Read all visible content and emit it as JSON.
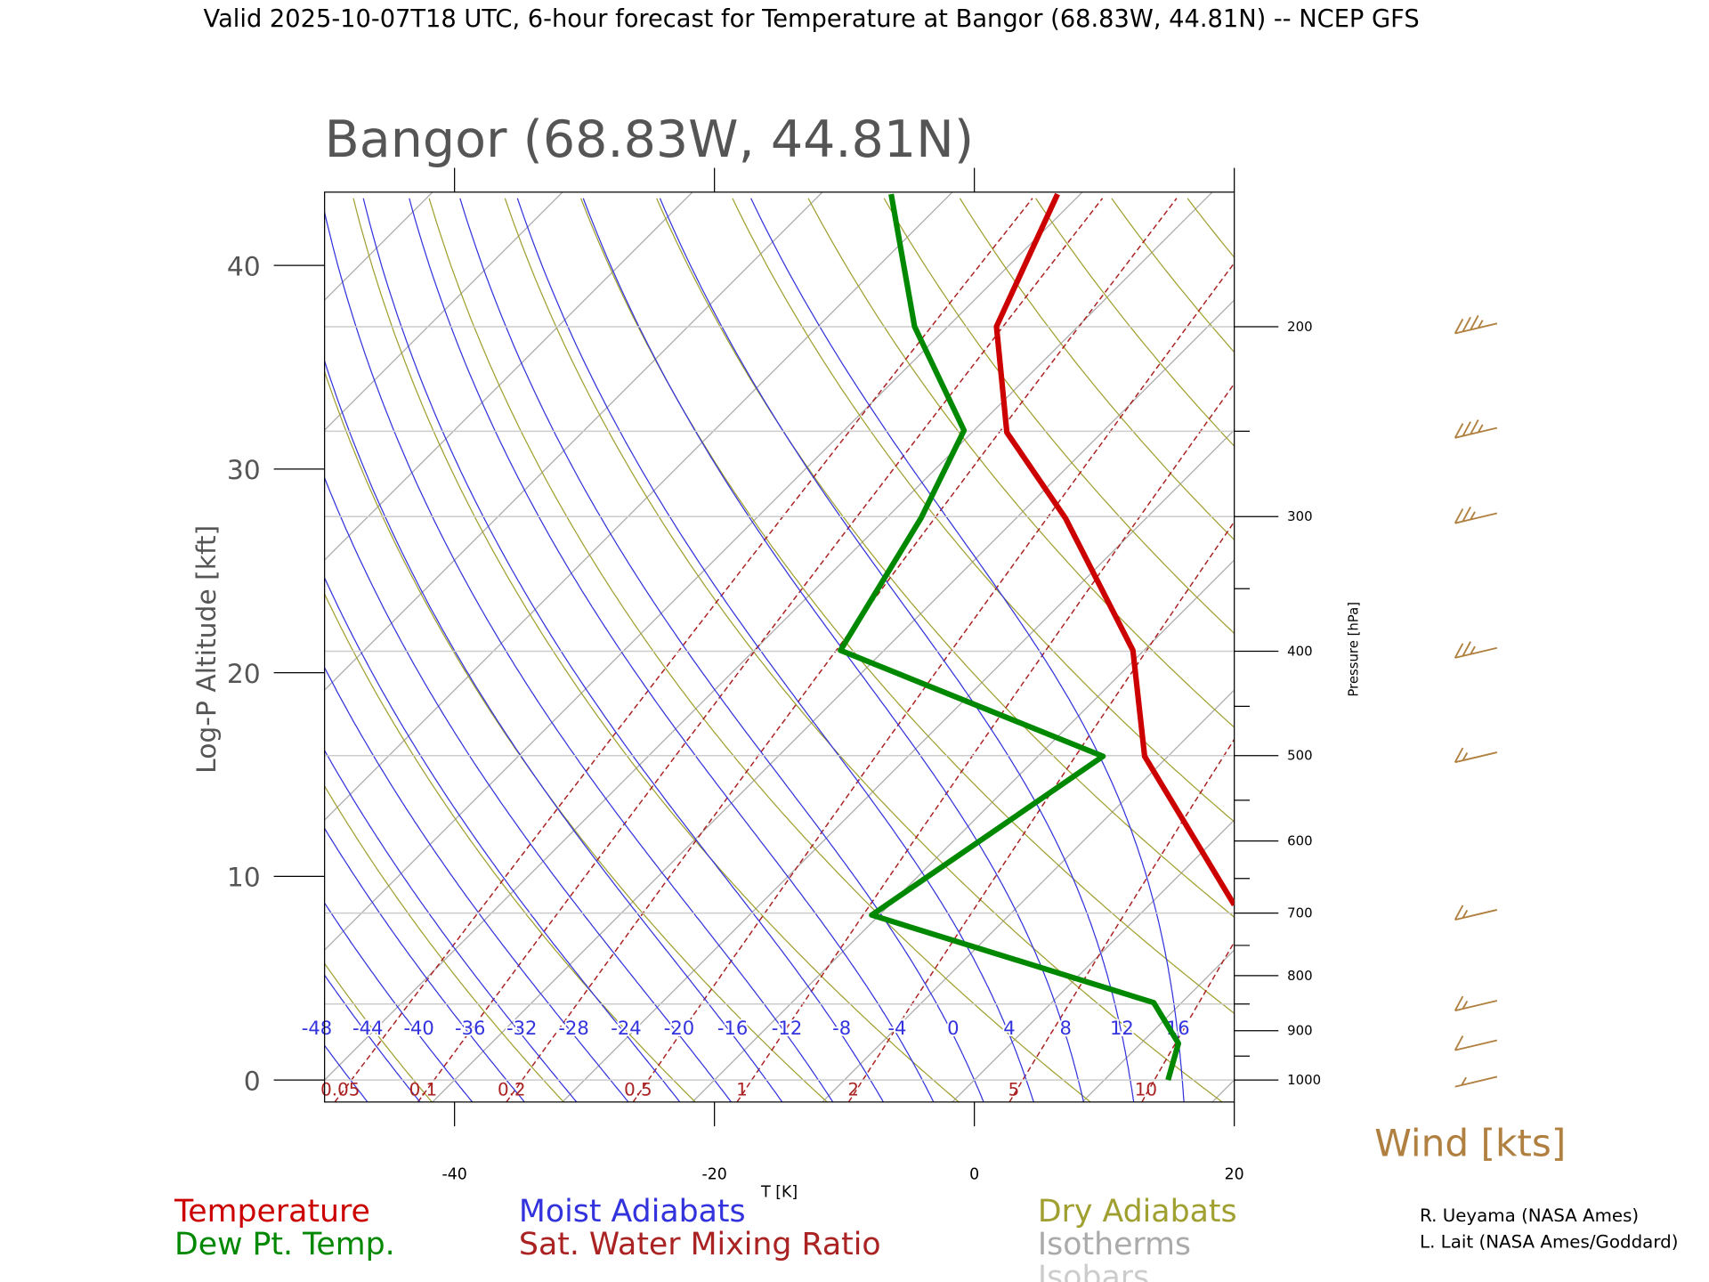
{
  "chart_data": {
    "type": "skewt",
    "suptitle": "Valid 2025-10-07T18 UTC, 6-hour forecast for Temperature at Bangor (68.83W, 44.81N) -- NCEP GFS",
    "title": "Bangor (68.83W, 44.81N)",
    "xlabel": "T [K]",
    "ylabel": "Log-P Altitude [kft]",
    "y2label": "Pressure [hPa]",
    "xlim": [
      -50,
      20
    ],
    "xticks": [
      -40,
      -20,
      0,
      20
    ],
    "ylim": [
      -1.08,
      43.6
    ],
    "yticks": [
      0,
      10,
      20,
      30,
      40
    ],
    "y2lim": [
      1048,
      150
    ],
    "y2scale": "log",
    "y2ticks": [
      200,
      300,
      400,
      500,
      600,
      700,
      800,
      900,
      1000
    ],
    "y2minor_ticks": [
      250,
      350,
      450,
      550,
      650,
      750,
      850,
      950
    ],
    "isobars": [
      200,
      250,
      300,
      400,
      500,
      700,
      850,
      1000
    ],
    "series": [
      {
        "name": "Temperature",
        "color": "#cc0000",
        "x": [
          6.4,
          1.7,
          2.5,
          7.0,
          12.2,
          13.1,
          20.0
        ],
        "values": [
          43.5,
          37.0,
          31.8,
          27.6,
          21.1,
          15.9,
          8.6
        ]
      },
      {
        "name": "Dew Pt. Temp.",
        "color": "#008800",
        "x": [
          -6.4,
          -4.6,
          -0.8,
          -4.1,
          -10.3,
          9.9,
          -7.9,
          13.8,
          15.7,
          14.9
        ],
        "values": [
          43.5,
          37.0,
          31.9,
          27.6,
          21.1,
          15.9,
          8.1,
          3.8,
          1.8,
          0.0
        ]
      }
    ],
    "moist_adiabat_labels": [
      -48,
      -44,
      -40,
      -36,
      -32,
      -28,
      -24,
      -20,
      -16,
      -12,
      -8,
      -4,
      0,
      4,
      8,
      12,
      16
    ],
    "mixing_ratio_labels": [
      0.05,
      0.1,
      0.2,
      0.5,
      1,
      2,
      5,
      10
    ],
    "legend": [
      {
        "name": "Moist Adiabats",
        "color": "#3333dd"
      },
      {
        "name": "Sat. Water Mixing Ratio",
        "color": "#aa2222"
      },
      {
        "name": "Dry Adiabats",
        "color": "#a0a030"
      },
      {
        "name": "Isotherms",
        "color": "#aaaaaa"
      },
      {
        "name": "Isobars",
        "color": "#cccccc"
      }
    ],
    "wind": {
      "label": "Wind [kts]",
      "color": "#b08040",
      "pressure": [
        200,
        250,
        300,
        400,
        500,
        700,
        850,
        925,
        1000
      ],
      "speed": [
        35,
        35,
        25,
        25,
        15,
        15,
        15,
        10,
        5
      ]
    },
    "credits": [
      "R. Ueyama (NASA Ames)",
      "L. Lait (NASA Ames/Goddard)"
    ]
  }
}
